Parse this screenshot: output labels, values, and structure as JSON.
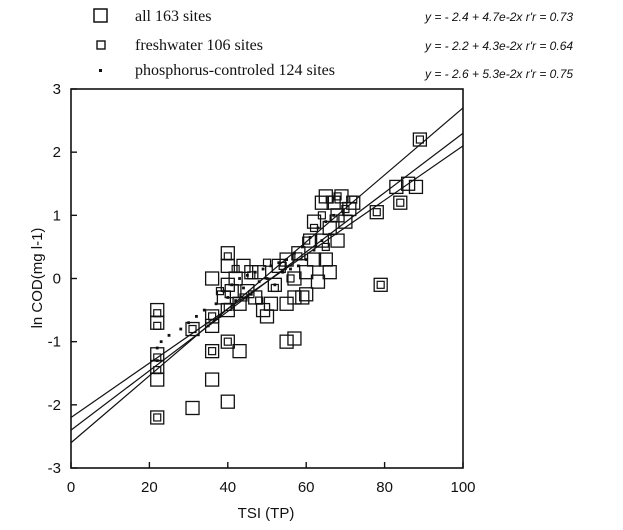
{
  "chart_data": {
    "type": "scatter",
    "xlabel": "TSI (TP)",
    "ylabel": "ln COD(mg l-1)",
    "xlim": [
      0,
      100
    ],
    "ylim": [
      -3,
      3
    ],
    "xticks": [
      "0",
      "20",
      "40",
      "60",
      "80",
      "100"
    ],
    "yticks": [
      "3",
      "2",
      "1",
      "0",
      "-1",
      "-2",
      "-3"
    ],
    "legend": [
      {
        "label": "all 163 sites",
        "marker": "large-open-square",
        "equation": "y = - 2.4 + 4.7e-2x   r'r = 0.73"
      },
      {
        "label": "freshwater 106 sites",
        "marker": "small-open-square",
        "equation": "y = - 2.2 + 4.3e-2x   r'r = 0.64"
      },
      {
        "label": "phosphorus-controled 124 sites",
        "marker": "dot",
        "equation": "y = - 2.6 + 5.3e-2x   r'r = 0.75"
      }
    ],
    "fits": [
      {
        "intercept": -2.4,
        "slope": 0.047
      },
      {
        "intercept": -2.2,
        "slope": 0.043
      },
      {
        "intercept": -2.6,
        "slope": 0.053
      }
    ],
    "series": [
      {
        "marker": "large-open-square",
        "points": [
          [
            22,
            -0.5
          ],
          [
            22,
            -0.7
          ],
          [
            22,
            -1.2
          ],
          [
            22,
            -1.4
          ],
          [
            22,
            -1.6
          ],
          [
            22,
            -2.2
          ],
          [
            31,
            -0.8
          ],
          [
            31,
            -2.05
          ],
          [
            36,
            0.0
          ],
          [
            36,
            -0.6
          ],
          [
            36,
            -0.75
          ],
          [
            36,
            -1.15
          ],
          [
            36,
            -1.6
          ],
          [
            39,
            -0.3
          ],
          [
            40,
            0.4
          ],
          [
            40,
            0.2
          ],
          [
            40,
            -0.1
          ],
          [
            40,
            -0.5
          ],
          [
            40,
            -1.0
          ],
          [
            40,
            -1.95
          ],
          [
            41,
            -0.2
          ],
          [
            42,
            0.0
          ],
          [
            43,
            -0.4
          ],
          [
            43,
            -1.15
          ],
          [
            44,
            0.2
          ],
          [
            45,
            -0.2
          ],
          [
            46,
            0.1
          ],
          [
            47,
            -0.3
          ],
          [
            48,
            0.1
          ],
          [
            49,
            -0.5
          ],
          [
            50,
            -0.6
          ],
          [
            51,
            -0.4
          ],
          [
            52,
            -0.1
          ],
          [
            53,
            0.2
          ],
          [
            55,
            0.3
          ],
          [
            55,
            -0.4
          ],
          [
            57,
            0.0
          ],
          [
            57,
            -0.3
          ],
          [
            58,
            0.4
          ],
          [
            59,
            -0.3
          ],
          [
            60,
            0.1
          ],
          [
            60,
            -0.25
          ],
          [
            61,
            0.6
          ],
          [
            62,
            0.9
          ],
          [
            62,
            0.3
          ],
          [
            63,
            -0.05
          ],
          [
            64,
            1.2
          ],
          [
            64,
            0.6
          ],
          [
            65,
            1.3
          ],
          [
            65,
            0.3
          ],
          [
            66,
            0.8
          ],
          [
            66,
            0.1
          ],
          [
            67,
            1.2
          ],
          [
            68,
            1.0
          ],
          [
            68,
            0.6
          ],
          [
            69,
            1.3
          ],
          [
            70,
            0.9
          ],
          [
            71,
            1.1
          ],
          [
            72,
            1.2
          ],
          [
            78,
            1.05
          ],
          [
            79,
            -0.1
          ],
          [
            83,
            1.45
          ],
          [
            84,
            1.2
          ],
          [
            86,
            1.5
          ],
          [
            88,
            1.45
          ],
          [
            89,
            2.2
          ],
          [
            55,
            -1.0
          ],
          [
            57,
            -0.95
          ]
        ]
      },
      {
        "marker": "small-open-square",
        "points": [
          [
            22,
            -0.55
          ],
          [
            22,
            -0.75
          ],
          [
            22,
            -1.25
          ],
          [
            22,
            -1.45
          ],
          [
            22,
            -2.2
          ],
          [
            31,
            -0.8
          ],
          [
            36,
            -0.6
          ],
          [
            36,
            -1.15
          ],
          [
            38,
            -0.2
          ],
          [
            40,
            0.35
          ],
          [
            40,
            -0.45
          ],
          [
            40,
            -1.0
          ],
          [
            42,
            0.15
          ],
          [
            44,
            -0.3
          ],
          [
            46,
            0.05
          ],
          [
            48,
            -0.35
          ],
          [
            50,
            0.25
          ],
          [
            52,
            -0.15
          ],
          [
            54,
            0.2
          ],
          [
            56,
            0.0
          ],
          [
            58,
            0.35
          ],
          [
            60,
            0.6
          ],
          [
            62,
            0.8
          ],
          [
            64,
            1.0
          ],
          [
            65,
            0.5
          ],
          [
            66,
            1.25
          ],
          [
            67,
            0.95
          ],
          [
            68,
            1.3
          ],
          [
            70,
            1.1
          ],
          [
            72,
            1.25
          ],
          [
            78,
            1.05
          ],
          [
            79,
            -0.1
          ],
          [
            84,
            1.2
          ],
          [
            89,
            2.2
          ]
        ]
      },
      {
        "marker": "dot",
        "points": [
          [
            22,
            -1.1
          ],
          [
            22,
            -1.3
          ],
          [
            23,
            -1.0
          ],
          [
            25,
            -0.9
          ],
          [
            28,
            -0.8
          ],
          [
            30,
            -0.7
          ],
          [
            32,
            -0.6
          ],
          [
            34,
            -0.5
          ],
          [
            35,
            -0.75
          ],
          [
            37,
            -0.4
          ],
          [
            38,
            -0.6
          ],
          [
            39,
            -0.2
          ],
          [
            40,
            -0.3
          ],
          [
            41,
            -0.1
          ],
          [
            42,
            -0.35
          ],
          [
            43,
            0.0
          ],
          [
            44,
            -0.15
          ],
          [
            45,
            0.05
          ],
          [
            46,
            -0.25
          ],
          [
            47,
            0.1
          ],
          [
            48,
            -0.05
          ],
          [
            49,
            0.15
          ],
          [
            50,
            0.0
          ],
          [
            51,
            0.2
          ],
          [
            52,
            -0.1
          ],
          [
            53,
            0.25
          ],
          [
            54,
            0.1
          ],
          [
            55,
            0.3
          ],
          [
            56,
            0.15
          ],
          [
            57,
            0.4
          ],
          [
            58,
            0.2
          ],
          [
            59,
            0.5
          ],
          [
            60,
            0.3
          ],
          [
            61,
            0.65
          ],
          [
            62,
            0.45
          ],
          [
            63,
            0.8
          ],
          [
            64,
            0.6
          ],
          [
            65,
            0.9
          ],
          [
            66,
            0.7
          ],
          [
            67,
            1.0
          ]
        ]
      }
    ]
  }
}
